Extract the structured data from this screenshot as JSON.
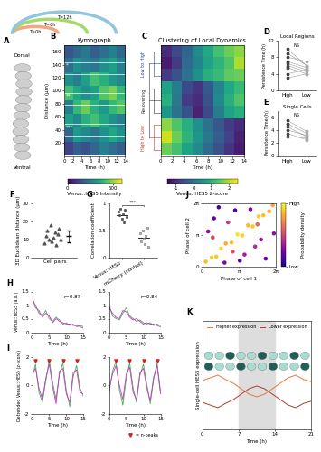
{
  "chart_data": [
    {
      "label": "A",
      "type": "diagram",
      "top_text": "Dorsal",
      "bottom_text": "Ventral",
      "arcs": [
        "T=0h",
        "T=6h",
        "T=12h"
      ],
      "colors": [
        "#f4a582",
        "#a6d96a",
        "#92c5de"
      ]
    },
    {
      "label": "B",
      "type": "heatmap",
      "title": "Kymograph",
      "xlabel": "Time (h)",
      "ylabel": "Distance (µm)",
      "xlim": [
        0,
        14
      ],
      "xticks": [
        0,
        2,
        4,
        6,
        8,
        10,
        12,
        14
      ],
      "ylim": [
        0,
        170
      ],
      "yticks": [
        20,
        40,
        60,
        80,
        100,
        120,
        140,
        160
      ],
      "cells": [
        [
          120,
          180,
          150,
          200,
          260,
          220,
          180
        ],
        [
          200,
          320,
          280,
          240,
          300,
          360,
          300
        ],
        [
          340,
          280,
          380,
          420,
          360,
          300,
          260
        ],
        [
          260,
          400,
          460,
          380,
          320,
          400,
          440
        ],
        [
          420,
          360,
          300,
          340,
          440,
          480,
          400
        ],
        [
          300,
          260,
          340,
          420,
          380,
          320,
          280
        ],
        [
          220,
          300,
          260,
          240,
          300,
          340,
          260
        ],
        [
          160,
          200,
          240,
          180,
          220,
          260,
          200
        ]
      ],
      "colorbar_label": "Venus::HES5 Intensity",
      "colorbar_range": [
        0,
        600
      ],
      "colorbar_ticks": [
        0,
        500
      ],
      "annotations": [
        {
          "text": "*",
          "y": 135
        },
        {
          "text": "**",
          "y": 88
        },
        {
          "text": "***",
          "y": 40
        }
      ]
    },
    {
      "label": "C",
      "type": "heatmap",
      "title": "Clustering of Local Dynamics",
      "xlabel": "Time (h)",
      "xlim": [
        0,
        14
      ],
      "xticks": [
        0,
        2,
        4,
        6,
        8,
        10,
        12,
        14
      ],
      "tick_labels": "x",
      "cells": [
        [
          -1.0,
          -0.6,
          -0.2,
          0.4,
          0.9,
          1.3,
          1.6,
          1.8
        ],
        [
          -1.2,
          -0.8,
          -0.1,
          0.3,
          0.8,
          1.1,
          1.4,
          2.0
        ],
        [
          -0.8,
          -0.5,
          0.0,
          0.5,
          1.0,
          1.2,
          1.5,
          1.6
        ],
        [
          0.8,
          0.2,
          -0.6,
          -0.9,
          -0.4,
          0.3,
          0.9,
          1.2
        ],
        [
          1.0,
          0.1,
          -0.8,
          -1.0,
          -0.5,
          0.4,
          1.0,
          1.4
        ],
        [
          0.6,
          0.0,
          -0.5,
          -1.1,
          -0.6,
          0.2,
          0.8,
          1.0
        ],
        [
          1.8,
          1.4,
          1.0,
          0.5,
          0.0,
          -0.4,
          -0.8,
          -1.0
        ],
        [
          2.2,
          1.6,
          1.1,
          0.6,
          0.1,
          -0.3,
          -0.7,
          -1.1
        ],
        [
          1.6,
          1.3,
          0.8,
          0.4,
          -0.1,
          -0.5,
          -0.9,
          -1.2
        ]
      ],
      "groups": [
        "Low to High",
        "Recovering",
        "High to Low"
      ],
      "group_sizes": [
        3,
        3,
        3
      ],
      "group_colors": [
        "#2c3e9e",
        "#333333",
        "#c0392b"
      ],
      "colorbar_label": "Venus::HES5 Z-score",
      "colorbar_range": [
        -1.5,
        2.5
      ],
      "colorbar_ticks": [
        -1,
        0,
        1,
        2
      ]
    },
    {
      "label": "D",
      "type": "paired",
      "title": "Local Regions",
      "ylabel": "Persistence Time (h)",
      "categories": [
        "High",
        "Low"
      ],
      "annotation": "NS",
      "ylim": [
        0,
        12
      ],
      "yticks": [
        0,
        4,
        8,
        12
      ],
      "high": [
        5.5,
        7,
        9,
        4,
        6,
        8,
        10,
        6.5,
        3
      ],
      "low": [
        4,
        5.5,
        6,
        5,
        4.5,
        7,
        6,
        5,
        4
      ]
    },
    {
      "label": "E",
      "type": "paired",
      "title": "Single Cells",
      "ylabel": "Persistence Time (h)",
      "categories": [
        "High",
        "Low"
      ],
      "annotation": "NS",
      "ylim": [
        0,
        7
      ],
      "yticks": [
        0,
        2,
        4,
        6
      ],
      "high": [
        4.5,
        5,
        3.5,
        4,
        5.5,
        3
      ],
      "low": [
        3,
        3.5,
        2.5,
        3.2,
        3.8,
        2.8
      ]
    },
    {
      "label": "F",
      "type": "scatter",
      "xlabel": "Cell pairs",
      "ylabel": "3D Euclidean distance (µm)",
      "tick_labels": "y",
      "ylim": [
        0,
        30
      ],
      "yticks": [
        0,
        10,
        20,
        30
      ],
      "values": [
        8,
        12,
        15,
        10,
        18,
        9,
        11,
        14,
        7,
        13,
        16,
        10
      ],
      "mean": 11.9,
      "sd": 3.2
    },
    {
      "label": "G",
      "type": "scatter",
      "ylabel": "Correlation coefficient",
      "categories": [
        "Venus::HES5",
        "mCherry (control)"
      ],
      "annotation": "***",
      "ylim": [
        0,
        1
      ],
      "yticks": [
        0,
        0.5,
        1
      ],
      "colors": [
        "#555555",
        "#bbbbbb"
      ],
      "values": [
        [
          0.85,
          0.78,
          0.9,
          0.72,
          0.8,
          0.65,
          0.88,
          0.75
        ],
        [
          0.45,
          0.3,
          0.5,
          0.35,
          0.25,
          0.4,
          0.55,
          0.2
        ]
      ]
    },
    {
      "label": "H",
      "type": "line",
      "xlabel": "Time (h)",
      "ylabel": "Venus::HES5 (a.u.)",
      "xlim": [
        0,
        15
      ],
      "xticks": [
        0,
        5,
        10,
        15
      ],
      "ylim": [
        0,
        1.5
      ],
      "yticks": [
        0,
        0.5,
        1,
        1.5
      ],
      "x": [
        0,
        1,
        2,
        3,
        4,
        5,
        6,
        7,
        8,
        9,
        10,
        11,
        12,
        13,
        14,
        15
      ],
      "panels": [
        {
          "annotation": "r=0.87",
          "series": [
            {
              "color": "#3cb043",
              "values": [
                1.2,
                1.0,
                0.7,
                0.6,
                0.8,
                0.5,
                0.4,
                0.55,
                0.45,
                0.3,
                0.35,
                0.25,
                0.3,
                0.2,
                0.25,
                0.2
              ]
            },
            {
              "color": "#d62ad0",
              "values": [
                1.3,
                0.9,
                0.8,
                0.55,
                0.7,
                0.6,
                0.35,
                0.5,
                0.4,
                0.35,
                0.3,
                0.3,
                0.25,
                0.25,
                0.2,
                0.15
              ]
            }
          ]
        },
        {
          "annotation": "r=0.84",
          "series": [
            {
              "color": "#3cb043",
              "values": [
                1.0,
                0.6,
                0.5,
                0.45,
                0.7,
                0.9,
                0.6,
                0.5,
                0.4,
                0.45,
                0.35,
                0.3,
                0.35,
                0.25,
                0.3,
                0.25
              ]
            },
            {
              "color": "#d62ad0",
              "values": [
                0.9,
                0.7,
                0.55,
                0.5,
                0.8,
                0.75,
                0.55,
                0.45,
                0.5,
                0.4,
                0.3,
                0.35,
                0.3,
                0.3,
                0.25,
                0.2
              ]
            }
          ]
        }
      ]
    },
    {
      "label": "I",
      "type": "line",
      "xlabel": "Time (h)",
      "ylabel": "Detrended Venus::HES5 (z-score)",
      "xlim": [
        0,
        15
      ],
      "xticks": [
        0,
        5,
        10,
        15
      ],
      "ylim": [
        -2,
        2
      ],
      "yticks": [
        -2,
        0,
        2
      ],
      "x": [
        0,
        1,
        2,
        3,
        4,
        5,
        6,
        7,
        8,
        9,
        10,
        11,
        12,
        13,
        14,
        15
      ],
      "peaks_name": "= n-peaks",
      "peaks_color": "#e41a1c",
      "panels": [
        {
          "peaks": [
            1,
            5,
            9,
            13
          ],
          "series": [
            {
              "color": "#3cb043",
              "values": [
                0.5,
                1.5,
                -0.5,
                -1.2,
                0.3,
                1.8,
                0.2,
                -1.0,
                0.8,
                1.6,
                -0.4,
                -1.5,
                0.6,
                1.4,
                -0.2,
                -0.8
              ]
            },
            {
              "color": "#d62ad0",
              "values": [
                0.8,
                1.2,
                -0.2,
                -1.0,
                0.5,
                1.5,
                -0.1,
                -1.3,
                1.0,
                1.2,
                -0.6,
                -1.2,
                0.9,
                1.1,
                -0.5,
                -0.6
              ]
            }
          ]
        },
        {
          "peaks": [
            2,
            6,
            10,
            14
          ],
          "series": [
            {
              "color": "#3cb043",
              "values": [
                -0.5,
                1.0,
                1.7,
                -0.3,
                -1.4,
                0.5,
                1.6,
                -0.2,
                -1.2,
                0.7,
                1.5,
                0.1,
                -1.3,
                0.4,
                1.6,
                -0.4
              ]
            },
            {
              "color": "#d62ad0",
              "values": [
                -0.2,
                0.8,
                1.4,
                0.0,
                -1.0,
                0.8,
                1.3,
                -0.5,
                -1.0,
                0.9,
                1.2,
                -0.2,
                -1.1,
                0.6,
                1.4,
                -0.6
              ]
            }
          ]
        }
      ]
    },
    {
      "label": "J",
      "type": "scatter",
      "xlabel": "Phase of cell 1",
      "ylabel": "Phase of cell 2",
      "xlim": [
        0,
        6.28318
      ],
      "ylim": [
        0,
        6.28318
      ],
      "xticks": [
        0,
        {
          "value": 3.14159,
          "label": "π"
        },
        {
          "value": 6.28318,
          "label": "2π"
        }
      ],
      "yticks": [
        0,
        {
          "value": 3.14159,
          "label": "π"
        },
        {
          "value": 6.28318,
          "label": "2π"
        }
      ],
      "x": [
        0.3,
        0.8,
        1.2,
        1.6,
        2.0,
        2.5,
        3.0,
        3.4,
        3.9,
        4.3,
        4.8,
        5.2,
        5.7,
        6.0,
        0.5,
        1.0,
        1.9,
        2.8,
        3.6,
        4.5,
        5.4,
        6.1,
        1.4,
        2.2,
        3.2,
        4.1,
        5.0,
        0.9,
        2.6,
        4.7
      ],
      "y": [
        0.5,
        0.9,
        1.0,
        1.8,
        2.3,
        2.4,
        3.2,
        3.1,
        4.1,
        4.0,
        5.0,
        5.1,
        5.5,
        6.1,
        3.5,
        4.8,
        0.4,
        5.6,
        1.2,
        2.0,
        0.8,
        3.3,
        5.9,
        4.4,
        0.6,
        5.7,
        2.7,
        2.9,
        1.5,
        4.2
      ],
      "density": [
        0.85,
        0.9,
        0.88,
        0.92,
        0.8,
        0.86,
        0.95,
        0.9,
        0.84,
        0.88,
        0.9,
        0.86,
        0.82,
        0.8,
        0.3,
        0.2,
        0.25,
        0.15,
        0.35,
        0.4,
        0.2,
        0.3,
        0.1,
        0.45,
        0.15,
        0.25,
        0.35,
        0.5,
        0.55,
        0.6
      ],
      "colorbar_label": "Probability density",
      "colorbar_range": [
        0,
        1
      ],
      "colorbar_ticks": [
        {
          "value": 0,
          "label": "Low"
        },
        {
          "value": 1,
          "label": "High"
        }
      ]
    },
    {
      "label": "K",
      "type": "line",
      "xlabel": "Time (h)",
      "ylabel": "Single-cell HES5 expression",
      "xlim": [
        0,
        21
      ],
      "xticks": [
        0,
        7,
        14,
        21
      ],
      "ylim": [
        0,
        2
      ],
      "tick_labels": "x",
      "legend": "upper center",
      "shade": [
        7,
        14
      ],
      "x": [
        0,
        1.5,
        3,
        4.5,
        6,
        7.5,
        9,
        10.5,
        12,
        13.5,
        15,
        16.5,
        18,
        19.5,
        21
      ],
      "series": [
        {
          "name": "Higher expression",
          "color": "#e07b39",
          "values": [
            0.9,
            0.95,
            1.0,
            0.92,
            0.85,
            0.75,
            0.65,
            0.6,
            0.65,
            0.75,
            0.85,
            0.95,
            1.0,
            0.92,
            0.88
          ]
        },
        {
          "name": "Lower expression",
          "color": "#b03a2e",
          "values": [
            0.5,
            0.45,
            0.4,
            0.48,
            0.55,
            0.65,
            0.75,
            0.8,
            0.75,
            0.65,
            0.55,
            0.45,
            0.4,
            0.48,
            0.52
          ]
        }
      ]
    }
  ]
}
